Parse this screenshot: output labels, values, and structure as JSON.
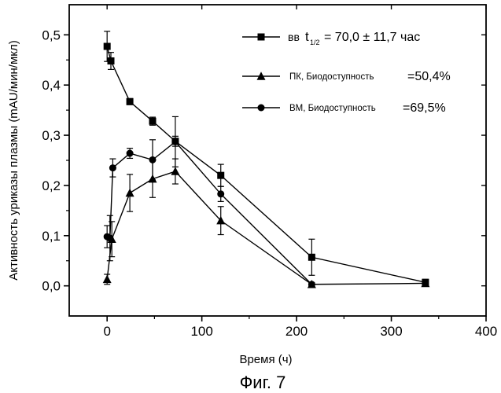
{
  "chart_data": {
    "type": "line",
    "xlabel": "Время (ч)",
    "ylabel": "Активность уриказы плазмы (mAU/мин/мкл)",
    "xlim": [
      -40,
      400
    ],
    "ylim": [
      -0.06,
      0.56
    ],
    "x_ticks": [
      0,
      100,
      200,
      300,
      400
    ],
    "x_tick_labels": [
      "0",
      "100",
      "200",
      "300",
      "400"
    ],
    "y_ticks": [
      0.0,
      0.1,
      0.2,
      0.3,
      0.4,
      0.5
    ],
    "y_tick_labels": [
      "0,0",
      "0,1",
      "0,2",
      "0,3",
      "0,4",
      "0,5"
    ],
    "grid": false,
    "legend_position": "top-right",
    "series": [
      {
        "name": "вв",
        "legend_suffix": "= 70,0 ± 11,7 час",
        "legend_t": "t",
        "legend_t_sub": "1/2",
        "marker": "square",
        "x": [
          0,
          4,
          24,
          48,
          72,
          120,
          216,
          336
        ],
        "values": [
          0.477,
          0.448,
          0.367,
          0.328,
          0.288,
          0.22,
          0.057,
          0.007
        ],
        "error": [
          0.03,
          0.017,
          0.006,
          0.008,
          0.01,
          0.022,
          0.036,
          0.006
        ]
      },
      {
        "name": "ПК, Биодоступность",
        "legend_value": "=50,4%",
        "marker": "triangle",
        "x": [
          0,
          5,
          24,
          48,
          72,
          120,
          216,
          336
        ],
        "values": [
          0.013,
          0.093,
          0.185,
          0.213,
          0.228,
          0.13,
          0.003,
          0.005
        ],
        "error": [
          0.01,
          0.035,
          0.037,
          0.037,
          0.025,
          0.028,
          0.003,
          0.004
        ]
      },
      {
        "name": "ВМ, Биодоступность",
        "legend_value": "=69,5%",
        "marker": "circle",
        "x": [
          0,
          3,
          6,
          24,
          48,
          72,
          120,
          216
        ],
        "values": [
          0.098,
          0.095,
          0.235,
          0.264,
          0.251,
          0.287,
          0.183,
          0.003
        ],
        "error": [
          0.022,
          0.045,
          0.018,
          0.01,
          0.04,
          0.05,
          0.015,
          0.003
        ]
      }
    ]
  },
  "figure": {
    "caption": "Фиг. 7"
  }
}
